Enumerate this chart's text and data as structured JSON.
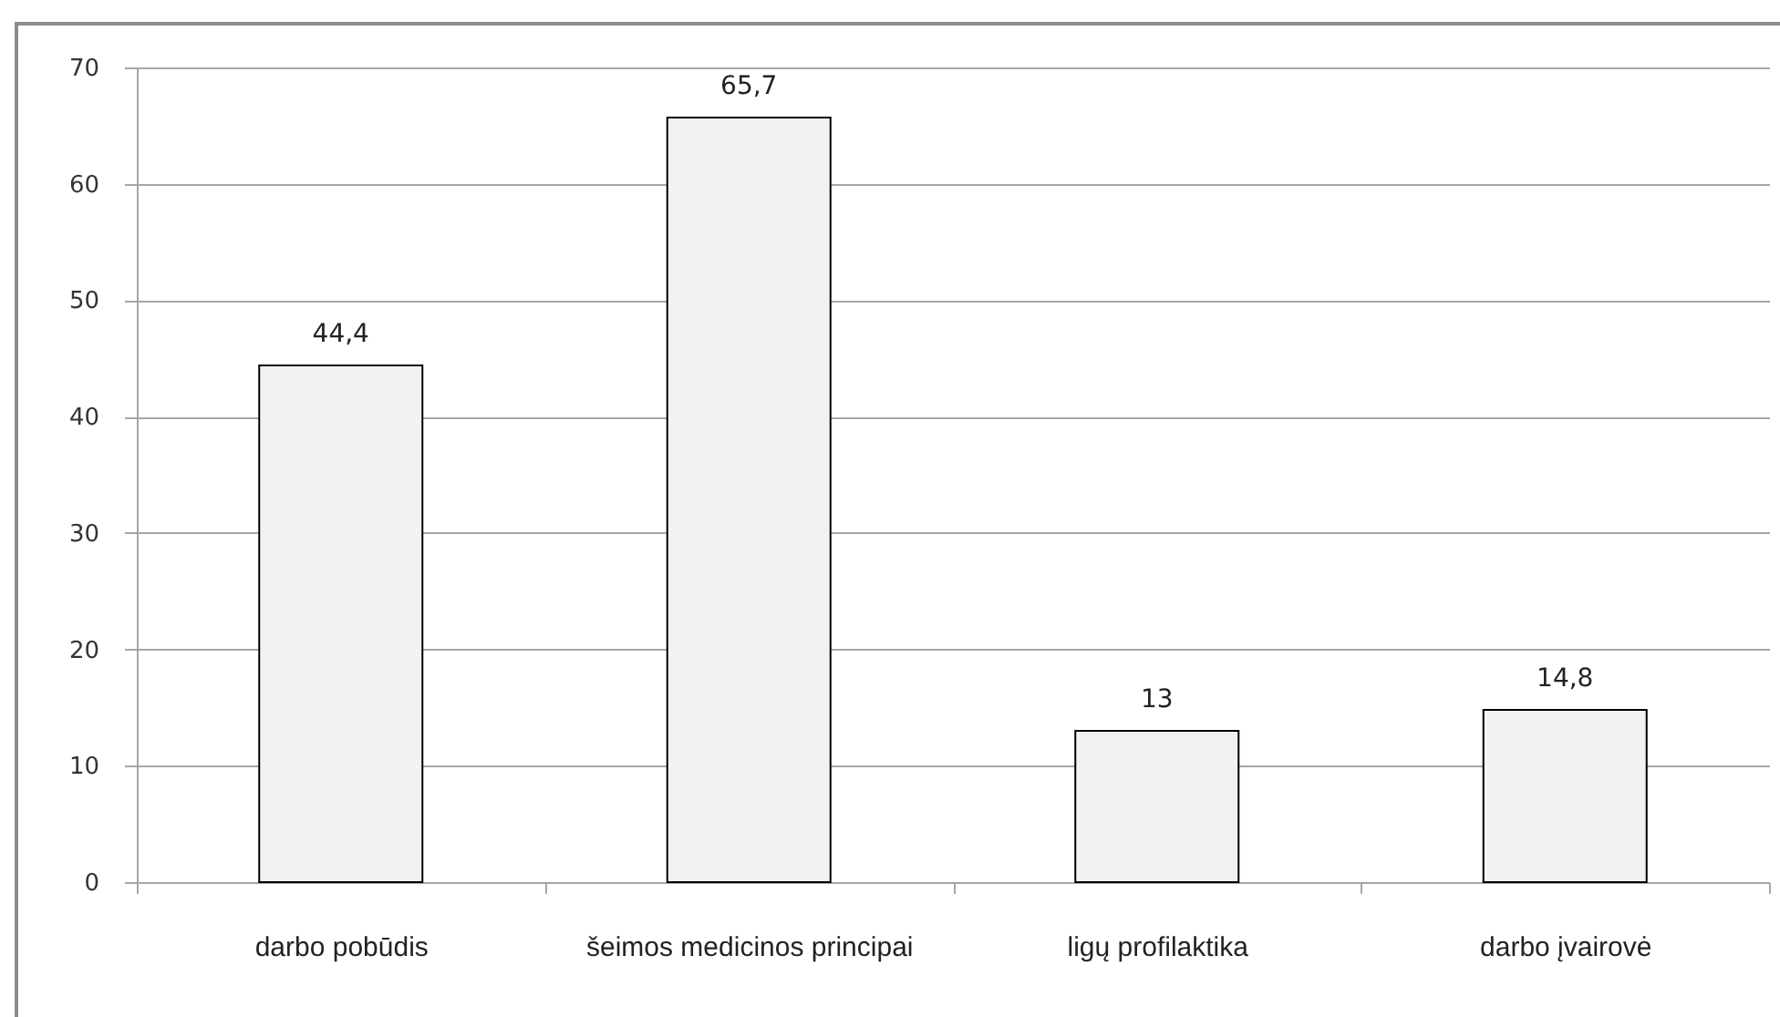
{
  "chart_data": {
    "type": "bar",
    "categories": [
      "darbo pobūdis",
      "šeimos medicinos principai",
      "ligų profilaktika",
      "darbo įvairovė"
    ],
    "values": [
      44.4,
      65.7,
      13,
      14.8
    ],
    "value_labels": [
      "44,4",
      "65,7",
      "13",
      "14,8"
    ],
    "color": "#f2f2f2",
    "ylim": [
      0,
      70
    ],
    "yticks": [
      0,
      10,
      20,
      30,
      40,
      50,
      60,
      70
    ],
    "grid": "y"
  }
}
